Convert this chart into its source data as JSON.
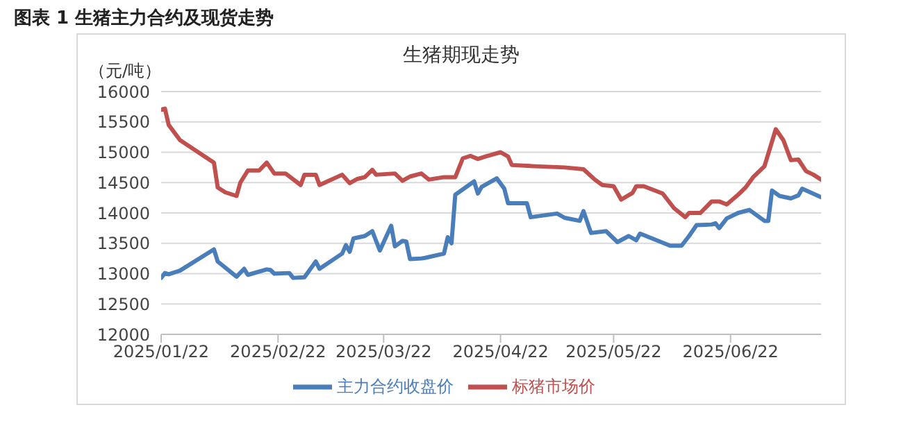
{
  "chart_data": {
    "type": "line",
    "title": "图表 1  生猪主力合约及现货走势",
    "subtitle": "生猪期现走势",
    "ylabel": "（元/吨）",
    "xlim": [
      "2025-01-22",
      "2025-07-16"
    ],
    "xticks": [
      {
        "value": "2025-01-22",
        "label": "2025/01/22"
      },
      {
        "value": "2025-02-22",
        "label": "2025/02/22"
      },
      {
        "value": "2025-03-22",
        "label": "2025/03/22"
      },
      {
        "value": "2025-04-22",
        "label": "2025/04/22"
      },
      {
        "value": "2025-05-22",
        "label": "2025/05/22"
      },
      {
        "value": "2025-06-22",
        "label": "2025/06/22"
      }
    ],
    "ylim": [
      12000,
      16000
    ],
    "yticks": [
      12000,
      12500,
      13000,
      13500,
      14000,
      14500,
      15000,
      15500,
      16000
    ],
    "grid": "y",
    "legend": "bottom",
    "marker": "none",
    "line_style": "solid",
    "series": [
      {
        "name": "主力合约收盘价",
        "color": "#4a7ebb",
        "x": [
          "2025-01-22",
          "2025-01-23",
          "2025-01-24",
          "2025-01-27",
          "2025-02-05",
          "2025-02-06",
          "2025-02-11",
          "2025-02-13",
          "2025-02-14",
          "2025-02-19",
          "2025-02-20",
          "2025-02-21",
          "2025-02-25",
          "2025-02-26",
          "2025-03-01",
          "2025-03-04",
          "2025-03-05",
          "2025-03-11",
          "2025-03-12",
          "2025-03-13",
          "2025-03-14",
          "2025-03-17",
          "2025-03-19",
          "2025-03-21",
          "2025-03-24",
          "2025-03-25",
          "2025-03-27",
          "2025-03-28",
          "2025-03-29",
          "2025-04-01",
          "2025-04-02",
          "2025-04-07",
          "2025-04-08",
          "2025-04-09",
          "2025-04-10",
          "2025-04-15",
          "2025-04-16",
          "2025-04-17",
          "2025-04-21",
          "2025-04-23",
          "2025-04-24",
          "2025-04-29",
          "2025-04-30",
          "2025-05-07",
          "2025-05-09",
          "2025-05-13",
          "2025-05-14",
          "2025-05-16",
          "2025-05-20",
          "2025-05-23",
          "2025-05-26",
          "2025-05-28",
          "2025-05-29",
          "2025-06-06",
          "2025-06-09",
          "2025-06-11",
          "2025-06-13",
          "2025-06-17",
          "2025-06-18",
          "2025-06-19",
          "2025-06-21",
          "2025-06-24",
          "2025-06-27",
          "2025-07-01",
          "2025-07-02",
          "2025-07-03",
          "2025-07-05",
          "2025-07-08",
          "2025-07-10",
          "2025-07-11",
          "2025-07-16"
        ],
        "values": [
          12930,
          13010,
          12990,
          13050,
          13400,
          13200,
          12950,
          13080,
          12980,
          13070,
          13060,
          13000,
          13010,
          12930,
          12940,
          13200,
          13080,
          13330,
          13470,
          13360,
          13580,
          13620,
          13700,
          13380,
          13790,
          13450,
          13540,
          13530,
          13240,
          13250,
          13260,
          13330,
          13600,
          13500,
          14300,
          14520,
          14320,
          14430,
          14570,
          14400,
          14160,
          14160,
          13930,
          13990,
          13920,
          13870,
          14030,
          13670,
          13700,
          13520,
          13620,
          13550,
          13660,
          13460,
          13460,
          13620,
          13800,
          13810,
          13830,
          13750,
          13910,
          14000,
          14050,
          13870,
          13870,
          14370,
          14280,
          14240,
          14290,
          14400,
          14260
        ]
      },
      {
        "name": "标猪市场价",
        "color": "#c0504d",
        "x": [
          "2025-01-22",
          "2025-01-23",
          "2025-01-24",
          "2025-01-27",
          "2025-02-05",
          "2025-02-06",
          "2025-02-08",
          "2025-02-11",
          "2025-02-12",
          "2025-02-14",
          "2025-02-17",
          "2025-02-19",
          "2025-02-21",
          "2025-02-24",
          "2025-02-28",
          "2025-03-01",
          "2025-03-04",
          "2025-03-05",
          "2025-03-11",
          "2025-03-13",
          "2025-03-15",
          "2025-03-17",
          "2025-03-19",
          "2025-03-20",
          "2025-03-25",
          "2025-03-27",
          "2025-03-29",
          "2025-04-01",
          "2025-04-03",
          "2025-04-07",
          "2025-04-10",
          "2025-04-12",
          "2025-04-14",
          "2025-04-16",
          "2025-04-18",
          "2025-04-22",
          "2025-04-24",
          "2025-04-25",
          "2025-05-01",
          "2025-05-09",
          "2025-05-14",
          "2025-05-17",
          "2025-05-19",
          "2025-05-22",
          "2025-05-24",
          "2025-05-27",
          "2025-05-28",
          "2025-05-30",
          "2025-06-04",
          "2025-06-07",
          "2025-06-10",
          "2025-06-11",
          "2025-06-14",
          "2025-06-17",
          "2025-06-19",
          "2025-06-21",
          "2025-06-24",
          "2025-06-26",
          "2025-06-28",
          "2025-07-01",
          "2025-07-04",
          "2025-07-06",
          "2025-07-08",
          "2025-07-10",
          "2025-07-12",
          "2025-07-14",
          "2025-07-16"
        ],
        "values": [
          15700,
          15720,
          15450,
          15200,
          14830,
          14420,
          14340,
          14280,
          14500,
          14700,
          14700,
          14830,
          14650,
          14650,
          14460,
          14630,
          14630,
          14460,
          14630,
          14490,
          14560,
          14590,
          14710,
          14630,
          14650,
          14530,
          14600,
          14650,
          14550,
          14590,
          14590,
          14900,
          14940,
          14890,
          14930,
          15000,
          14930,
          14790,
          14770,
          14750,
          14720,
          14550,
          14460,
          14440,
          14220,
          14330,
          14440,
          14440,
          14320,
          14080,
          13930,
          14000,
          14000,
          14190,
          14190,
          14140,
          14300,
          14420,
          14590,
          14770,
          15380,
          15200,
          14870,
          14880,
          14690,
          14630,
          14550
        ]
      }
    ]
  }
}
